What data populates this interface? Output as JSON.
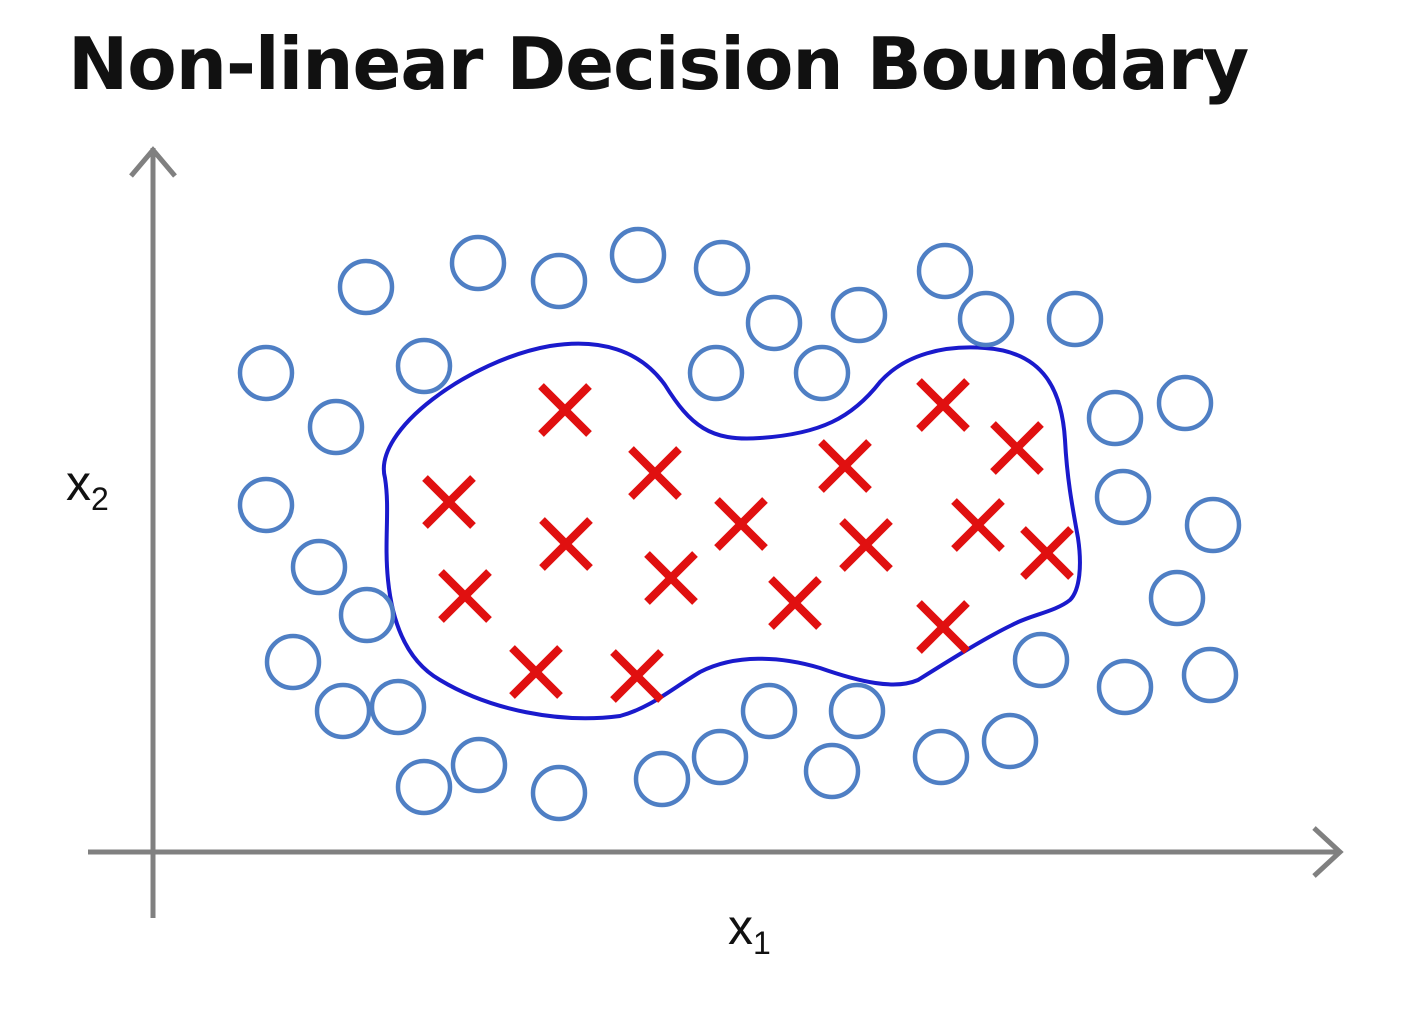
{
  "title": "Non-linear Decision Boundary",
  "axes": {
    "x_var": "x",
    "x_sub": "1",
    "y_var": "x",
    "y_sub": "2"
  },
  "colors": {
    "axis": "#808080",
    "negative_marker": "#4f7fc4",
    "positive_marker": "#e01010",
    "boundary": "#1a1acc"
  },
  "markers": {
    "negative_symbol": "circle",
    "positive_symbol": "cross"
  }
}
